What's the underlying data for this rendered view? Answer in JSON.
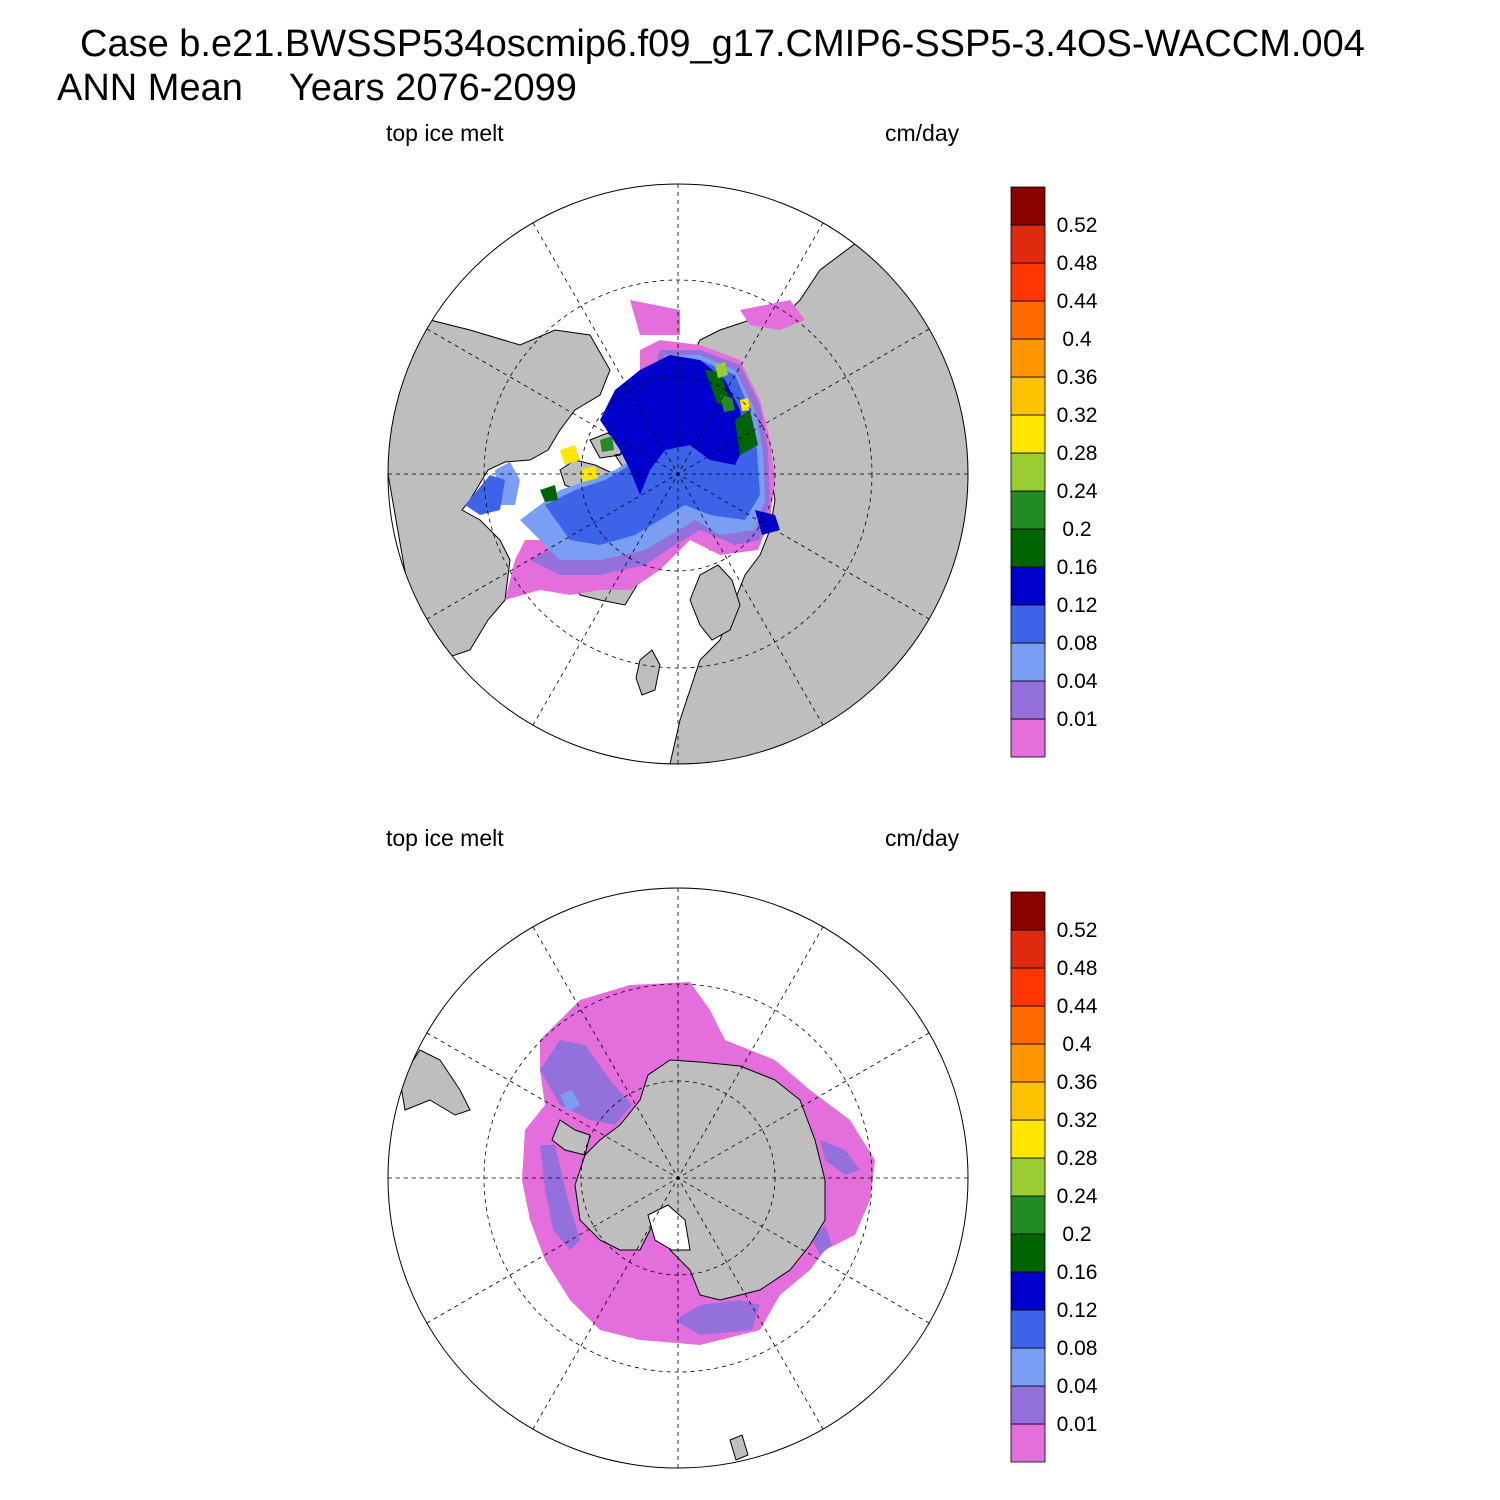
{
  "header": {
    "case_line": "Case b.e21.BWSSP534oscmip6.f09_g17.CMIP6-SSP5-3.4OS-WACCM.004",
    "mean_label": "ANN Mean",
    "years_label": "Years 2076-2099"
  },
  "colors": {
    "land": "#bebebe",
    "ocean": "#ffffff",
    "bins": [
      "#e46fdc",
      "#9370db",
      "#7b9ef5",
      "#3d64e8",
      "#0000cd",
      "#006400",
      "#228b22",
      "#9acd32",
      "#ffe600",
      "#ffc200",
      "#ff9600",
      "#ff6a00",
      "#ff3600",
      "#e02a10",
      "#8b0000"
    ]
  },
  "panels": [
    {
      "hemisphere": "north",
      "left_label": "top ice melt",
      "right_label": "cm/day"
    },
    {
      "hemisphere": "south",
      "left_label": "top ice melt",
      "right_label": "cm/day"
    }
  ],
  "colorbar": {
    "levels": [
      "0.01",
      "0.04",
      "0.08",
      "0.12",
      "0.16",
      "0.2",
      "0.24",
      "0.28",
      "0.32",
      "0.36",
      "0.4",
      "0.44",
      "0.48",
      "0.52"
    ]
  }
}
